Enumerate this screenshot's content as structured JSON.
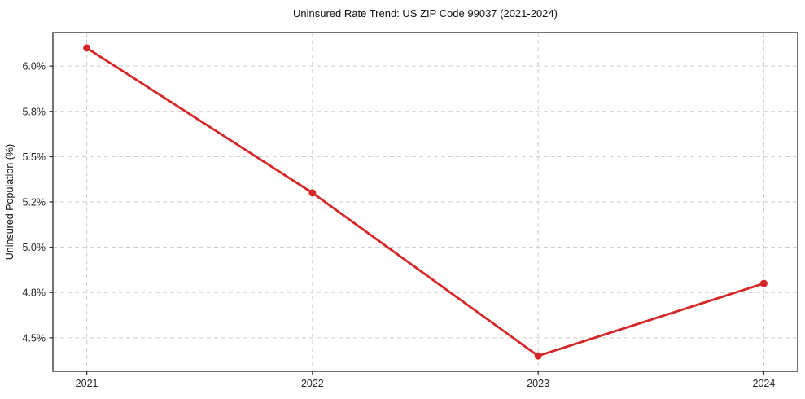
{
  "chart_data": {
    "type": "line",
    "title": "Uninsured Rate Trend: US ZIP Code 99037 (2021-2024)",
    "xlabel": "",
    "ylabel": "Uninsured Population (%)",
    "x": [
      2021,
      2022,
      2023,
      2024
    ],
    "x_tick_labels": [
      "2021",
      "2022",
      "2023",
      "2024"
    ],
    "values": [
      6.1,
      5.3,
      4.4,
      4.8
    ],
    "y_ticks": [
      {
        "value": 6.0,
        "label": "6.0%"
      },
      {
        "value": 5.75,
        "label": "5.8%"
      },
      {
        "value": 5.5,
        "label": "5.5%"
      },
      {
        "value": 5.25,
        "label": "5.2%"
      },
      {
        "value": 5.0,
        "label": "5.0%"
      },
      {
        "value": 4.75,
        "label": "4.8%"
      },
      {
        "value": 4.5,
        "label": "4.5%"
      }
    ],
    "xlim": [
      2020.85,
      2024.15
    ],
    "ylim": [
      4.315,
      6.185
    ],
    "grid": true,
    "grid_style": "dashed",
    "legend_position": "none",
    "line_color": "#d62728",
    "marker": "circle"
  },
  "style": {
    "background": "#ffffff",
    "grid_color": "#cccccc",
    "spine_color": "#2a2a2a",
    "tick_label_color": "#262626",
    "title_color": "#111111"
  }
}
